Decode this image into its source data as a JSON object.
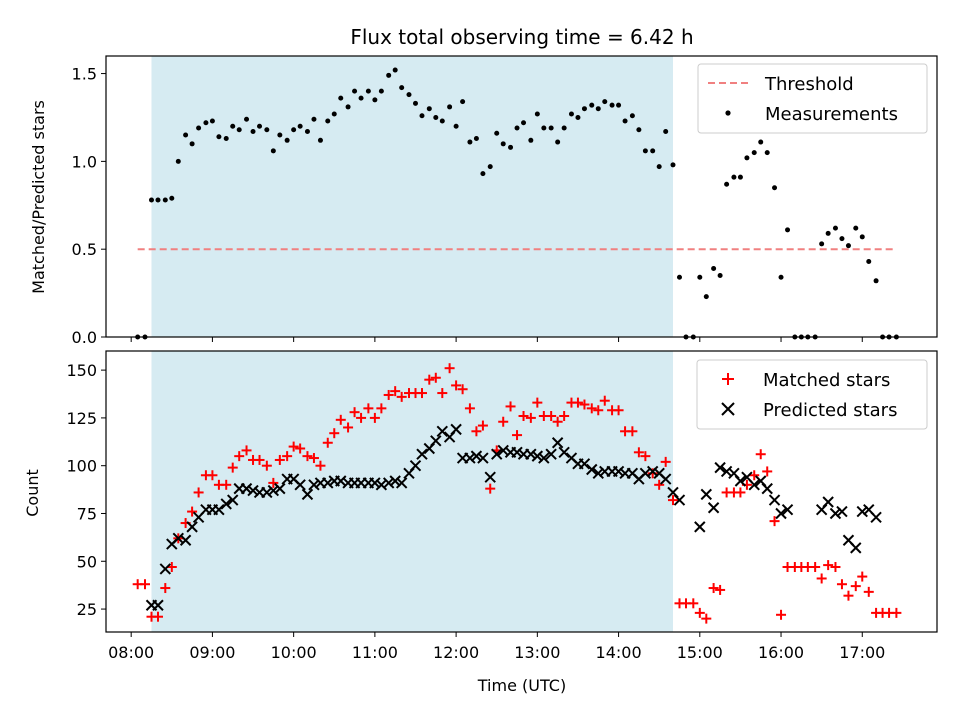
{
  "figure": {
    "title": "Flux total observing time = 6.42 h"
  },
  "chart_data": [
    {
      "type": "scatter",
      "ylabel": "Matched/Predicted stars",
      "xlim": [
        7.69,
        17.92
      ],
      "ylim": [
        0,
        1.6
      ],
      "yticks": [
        0.0,
        0.5,
        1.0,
        1.5
      ],
      "ytick_labels": [
        "0.0",
        "0.5",
        "1.0",
        "1.5"
      ],
      "xticks": [
        8,
        9,
        10,
        11,
        12,
        13,
        14,
        15,
        16,
        17
      ],
      "shaded_span": {
        "x0": 8.25,
        "x1": 14.67,
        "color": "#add8e6"
      },
      "grid": false,
      "legend_position": "upper right",
      "legend": {
        "threshold_label": "Threshold",
        "measurements_label": "Measurements"
      },
      "threshold": {
        "y": 0.5,
        "x0": 8.08,
        "x1": 17.42,
        "color": "#f08080"
      },
      "series": [
        {
          "name": "Measurements",
          "color": "#000000",
          "x": [
            8.08,
            8.17,
            8.25,
            8.33,
            8.42,
            8.5,
            8.58,
            8.67,
            8.75,
            8.83,
            8.92,
            9.0,
            9.08,
            9.17,
            9.25,
            9.33,
            9.42,
            9.5,
            9.58,
            9.67,
            9.75,
            9.83,
            9.92,
            10.0,
            10.08,
            10.17,
            10.25,
            10.33,
            10.42,
            10.5,
            10.58,
            10.67,
            10.75,
            10.83,
            10.92,
            11.0,
            11.08,
            11.17,
            11.25,
            11.33,
            11.42,
            11.5,
            11.58,
            11.67,
            11.75,
            11.83,
            11.92,
            12.0,
            12.08,
            12.17,
            12.25,
            12.33,
            12.42,
            12.5,
            12.58,
            12.67,
            12.75,
            12.83,
            12.92,
            13.0,
            13.08,
            13.17,
            13.25,
            13.33,
            13.42,
            13.5,
            13.58,
            13.67,
            13.75,
            13.83,
            13.92,
            14.0,
            14.08,
            14.17,
            14.25,
            14.33,
            14.42,
            14.5,
            14.58,
            14.67,
            14.75,
            14.83,
            14.92,
            15.0,
            15.08,
            15.17,
            15.25,
            15.33,
            15.42,
            15.5,
            15.58,
            15.67,
            15.75,
            15.83,
            15.92,
            16.0,
            16.08,
            16.17,
            16.25,
            16.33,
            16.42,
            16.5,
            16.58,
            16.67,
            16.75,
            16.83,
            16.92,
            17.0,
            17.08,
            17.17,
            17.25,
            17.33,
            17.42
          ],
          "y": [
            0.0,
            0.0,
            0.78,
            0.78,
            0.78,
            0.79,
            1.0,
            1.15,
            1.1,
            1.19,
            1.22,
            1.23,
            1.14,
            1.13,
            1.2,
            1.18,
            1.24,
            1.17,
            1.2,
            1.18,
            1.06,
            1.15,
            1.12,
            1.18,
            1.2,
            1.17,
            1.24,
            1.12,
            1.23,
            1.27,
            1.36,
            1.31,
            1.4,
            1.36,
            1.4,
            1.35,
            1.4,
            1.49,
            1.52,
            1.42,
            1.38,
            1.33,
            1.26,
            1.3,
            1.25,
            1.23,
            1.31,
            1.2,
            1.34,
            1.11,
            1.13,
            0.93,
            0.97,
            1.16,
            1.1,
            1.08,
            1.19,
            1.22,
            1.12,
            1.27,
            1.19,
            1.19,
            1.11,
            1.19,
            1.27,
            1.25,
            1.3,
            1.32,
            1.3,
            1.34,
            1.32,
            1.32,
            1.23,
            1.26,
            1.18,
            1.06,
            1.06,
            0.97,
            1.17,
            0.98,
            0.34,
            0.0,
            0.0,
            0.34,
            0.23,
            0.39,
            0.35,
            0.87,
            0.91,
            0.91,
            1.02,
            1.05,
            1.11,
            1.05,
            0.85,
            0.34,
            0.61,
            0.0,
            0.0,
            0.0,
            0.0,
            0.53,
            0.59,
            0.62,
            0.56,
            0.52,
            0.62,
            0.57,
            0.43,
            0.32,
            0.0,
            0.0,
            0.0
          ]
        }
      ]
    },
    {
      "type": "scatter",
      "ylabel": "Count",
      "xlabel": "Time (UTC)",
      "xlim": [
        7.69,
        17.92
      ],
      "ylim": [
        13,
        160
      ],
      "yticks": [
        25,
        50,
        75,
        100,
        125,
        150
      ],
      "ytick_labels": [
        "25",
        "50",
        "75",
        "100",
        "125",
        "150"
      ],
      "xticks": [
        8,
        9,
        10,
        11,
        12,
        13,
        14,
        15,
        16,
        17
      ],
      "xtick_labels": [
        "08:00",
        "09:00",
        "10:00",
        "11:00",
        "12:00",
        "13:00",
        "14:00",
        "15:00",
        "16:00",
        "17:00"
      ],
      "shaded_span": {
        "x0": 8.25,
        "x1": 14.67,
        "color": "#add8e6"
      },
      "grid": false,
      "legend_position": "upper right",
      "series": [
        {
          "name": "Matched stars",
          "marker": "plus",
          "color": "#ff0000",
          "x": [
            8.08,
            8.17,
            8.25,
            8.33,
            8.42,
            8.5,
            8.58,
            8.67,
            8.75,
            8.83,
            8.92,
            9.0,
            9.08,
            9.17,
            9.25,
            9.33,
            9.42,
            9.5,
            9.58,
            9.67,
            9.75,
            9.83,
            9.92,
            10.0,
            10.08,
            10.17,
            10.25,
            10.33,
            10.42,
            10.5,
            10.58,
            10.67,
            10.75,
            10.83,
            10.92,
            11.0,
            11.08,
            11.17,
            11.25,
            11.33,
            11.42,
            11.5,
            11.58,
            11.67,
            11.75,
            11.83,
            11.92,
            12.0,
            12.08,
            12.17,
            12.25,
            12.33,
            12.42,
            12.5,
            12.58,
            12.67,
            12.75,
            12.83,
            12.92,
            13.0,
            13.08,
            13.17,
            13.25,
            13.33,
            13.42,
            13.5,
            13.58,
            13.67,
            13.75,
            13.83,
            13.92,
            14.0,
            14.08,
            14.17,
            14.25,
            14.33,
            14.42,
            14.5,
            14.58,
            14.67,
            14.75,
            14.83,
            14.92,
            15.0,
            15.08,
            15.17,
            15.25,
            15.33,
            15.42,
            15.5,
            15.58,
            15.67,
            15.75,
            15.83,
            15.92,
            16.0,
            16.08,
            16.17,
            16.25,
            16.33,
            16.42,
            16.5,
            16.58,
            16.67,
            16.75,
            16.83,
            16.92,
            17.0,
            17.08,
            17.17,
            17.25,
            17.33,
            17.42
          ],
          "y": [
            38,
            38,
            21,
            21,
            36,
            47,
            62,
            70,
            76,
            86,
            95,
            95,
            90,
            90,
            99,
            105,
            108,
            103,
            103,
            100,
            91,
            103,
            105,
            110,
            109,
            105,
            104,
            100,
            112,
            117,
            124,
            120,
            128,
            125,
            130,
            125,
            130,
            137,
            139,
            136,
            138,
            138,
            138,
            145,
            146,
            138,
            151,
            142,
            140,
            130,
            118,
            121,
            88,
            108,
            123,
            131,
            116,
            126,
            125,
            133,
            126,
            126,
            123,
            126,
            133,
            133,
            132,
            130,
            129,
            134,
            129,
            129,
            118,
            118,
            107,
            105,
            96,
            90,
            102,
            82,
            28,
            28,
            28,
            23,
            20,
            36,
            35,
            86,
            86,
            86,
            90,
            95,
            106,
            97,
            71,
            22,
            47,
            47,
            47,
            47,
            47,
            41,
            48,
            47,
            38,
            32,
            37,
            42,
            34,
            23,
            23,
            23,
            23
          ]
        },
        {
          "name": "Predicted stars",
          "marker": "x",
          "color": "#000000",
          "x": [
            8.25,
            8.33,
            8.42,
            8.5,
            8.58,
            8.67,
            8.75,
            8.83,
            8.92,
            9.0,
            9.08,
            9.17,
            9.25,
            9.33,
            9.42,
            9.5,
            9.58,
            9.67,
            9.75,
            9.83,
            9.92,
            10.0,
            10.08,
            10.17,
            10.25,
            10.33,
            10.42,
            10.5,
            10.58,
            10.67,
            10.75,
            10.83,
            10.92,
            11.0,
            11.08,
            11.17,
            11.25,
            11.33,
            11.42,
            11.5,
            11.58,
            11.67,
            11.75,
            11.83,
            11.92,
            12.0,
            12.08,
            12.17,
            12.25,
            12.33,
            12.42,
            12.5,
            12.58,
            12.67,
            12.75,
            12.83,
            12.92,
            13.0,
            13.08,
            13.17,
            13.25,
            13.33,
            13.42,
            13.5,
            13.58,
            13.67,
            13.75,
            13.83,
            13.92,
            14.0,
            14.08,
            14.17,
            14.25,
            14.33,
            14.42,
            14.5,
            14.58,
            14.67,
            14.75,
            15.0,
            15.08,
            15.17,
            15.25,
            15.33,
            15.42,
            15.5,
            15.58,
            15.67,
            15.75,
            15.83,
            15.92,
            16.0,
            16.08,
            16.5,
            16.58,
            16.67,
            16.75,
            16.83,
            16.92,
            17.0,
            17.08,
            17.17
          ],
          "y": [
            27,
            27,
            46,
            59,
            62,
            61,
            68,
            73,
            77,
            77,
            77,
            80,
            82,
            88,
            88,
            87,
            86,
            86,
            87,
            88,
            93,
            93,
            90,
            85,
            90,
            91,
            91,
            92,
            92,
            91,
            91,
            91,
            91,
            91,
            90,
            91,
            92,
            91,
            96,
            100,
            106,
            109,
            113,
            118,
            115,
            119,
            104,
            104,
            105,
            104,
            94,
            106,
            108,
            107,
            107,
            106,
            106,
            105,
            104,
            106,
            112,
            107,
            104,
            101,
            101,
            98,
            96,
            97,
            97,
            97,
            96,
            96,
            93,
            96,
            97,
            96,
            93,
            86,
            82,
            68,
            85,
            78,
            99,
            97,
            96,
            92,
            94,
            90,
            92,
            88,
            82,
            75,
            77,
            77,
            81,
            75,
            76,
            61,
            57,
            76,
            77,
            73
          ]
        }
      ]
    }
  ]
}
